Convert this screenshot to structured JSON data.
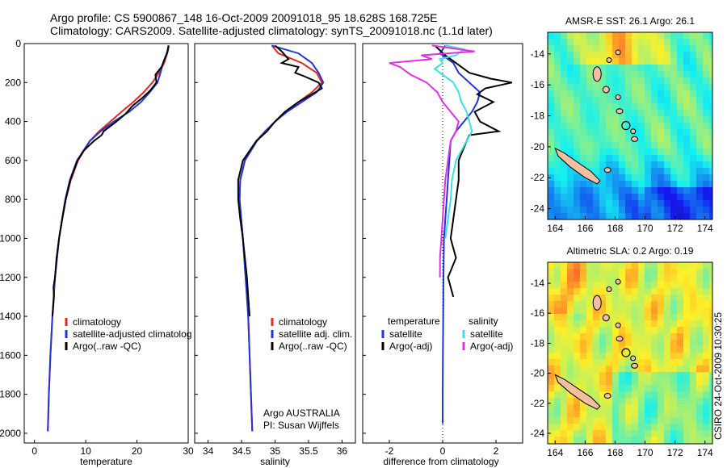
{
  "header": {
    "line1": "Argo profile: CS 5900867_148 16-Oct-2009 20091018_95 18.628S 168.725E",
    "line2": "Climatology: CARS2009. Satellite-adjusted climatology: synTS_20091018.nc (1.1d later)"
  },
  "side_text": "CSIRO 24-Oct-2009 10:30:25",
  "colors": {
    "climatology": "#e8251f",
    "satellite": "#1f35d6",
    "argo": "#000000",
    "sal_satellite": "#3fdfe0",
    "sal_argo": "#e030e0",
    "land": "#f2bfa0"
  },
  "chart_data": [
    {
      "type": "line",
      "xlabel": "temperature",
      "ylabel": "",
      "xlim": [
        -2,
        30
      ],
      "ylim": [
        2050,
        0
      ],
      "xticks": [
        "0",
        "10",
        "20",
        "30"
      ],
      "yticks": [
        "0",
        "200",
        "400",
        "600",
        "800",
        "1000",
        "1200",
        "1400",
        "1600",
        "1800",
        "2000"
      ],
      "legend": [
        "climatology",
        "satellite-adjusted climatolog",
        "Argo(..raw -QC)"
      ],
      "legend_position": "lower-right",
      "series": [
        {
          "name": "climatology",
          "y": [
            10,
            50,
            100,
            150,
            200,
            250,
            300,
            350,
            400,
            450,
            500,
            600,
            700,
            800,
            1000,
            1200,
            1400,
            1600,
            1800,
            1990
          ],
          "x": [
            26.1,
            25.9,
            25.3,
            24.3,
            23.0,
            21.3,
            19.3,
            17.0,
            14.8,
            12.6,
            10.8,
            8.5,
            7.1,
            6.1,
            4.8,
            4.0,
            3.5,
            3.1,
            2.8,
            2.6
          ]
        },
        {
          "name": "satellite-adjusted climatolog",
          "y": [
            10,
            50,
            100,
            150,
            200,
            250,
            300,
            350,
            400,
            450,
            500,
            600,
            700,
            800,
            1000,
            1200,
            1400,
            1600,
            1800,
            1990
          ],
          "x": [
            26.2,
            25.8,
            25.1,
            24.6,
            24.0,
            22.5,
            20.8,
            18.5,
            15.5,
            12.9,
            10.8,
            8.3,
            6.9,
            6.0,
            4.8,
            4.0,
            3.5,
            3.1,
            2.8,
            2.6
          ]
        },
        {
          "name": "Argo(..raw -QC)",
          "y": [
            10,
            40,
            80,
            120,
            160,
            200,
            240,
            280,
            320,
            360,
            400,
            450,
            470,
            500,
            550,
            600,
            700,
            800,
            900,
            1000,
            1100,
            1200,
            1250,
            1300,
            1400
          ],
          "x": [
            26.2,
            26.0,
            25.4,
            24.8,
            23.6,
            23.8,
            22.6,
            21.0,
            19.1,
            17.8,
            16.0,
            13.5,
            13.1,
            11.6,
            9.6,
            8.4,
            7.0,
            6.1,
            5.4,
            4.8,
            4.3,
            4.0,
            3.7,
            3.8,
            3.5
          ]
        }
      ]
    },
    {
      "type": "line",
      "xlabel": "salinity",
      "ylabel": "",
      "xlim": [
        33.8,
        36.2
      ],
      "ylim": [
        2050,
        0
      ],
      "xticks": [
        "34",
        "34.5",
        "35",
        "35.5",
        "36"
      ],
      "legend": [
        "climatology",
        "satellite adj. clim.",
        "Argo(..raw -QC)"
      ],
      "legend_position": "lower-right",
      "annotation": [
        "Argo AUSTRALIA",
        "PI: Susan Wijffels"
      ],
      "series": [
        {
          "name": "climatology",
          "y": [
            10,
            50,
            100,
            150,
            200,
            250,
            300,
            350,
            400,
            450,
            500,
            600,
            700,
            800,
            1000,
            1200,
            1400,
            1600,
            1800,
            1990
          ],
          "x": [
            34.95,
            35.05,
            35.4,
            35.62,
            35.7,
            35.55,
            35.35,
            35.15,
            35.0,
            34.85,
            34.72,
            34.55,
            34.48,
            34.47,
            34.52,
            34.56,
            34.6,
            34.62,
            34.64,
            34.66
          ]
        },
        {
          "name": "satellite adj. clim.",
          "y": [
            10,
            50,
            100,
            150,
            200,
            250,
            300,
            350,
            400,
            450,
            500,
            600,
            700,
            800,
            1000,
            1200,
            1400,
            1600,
            1800,
            1990
          ],
          "x": [
            34.95,
            35.35,
            35.55,
            35.65,
            35.72,
            35.62,
            35.4,
            35.18,
            35.0,
            34.86,
            34.73,
            34.55,
            34.48,
            34.47,
            34.52,
            34.56,
            34.6,
            34.62,
            34.64,
            34.66
          ]
        },
        {
          "name": "Argo(..raw -QC)",
          "y": [
            10,
            40,
            80,
            100,
            120,
            150,
            170,
            200,
            230,
            260,
            300,
            350,
            400,
            450,
            500,
            600,
            700,
            800,
            900,
            1000,
            1100,
            1200,
            1300,
            1400
          ],
          "x": [
            35.0,
            35.1,
            35.2,
            35.1,
            35.35,
            35.3,
            35.45,
            35.65,
            35.7,
            35.55,
            35.35,
            35.15,
            35.0,
            34.88,
            34.72,
            34.52,
            34.45,
            34.45,
            34.48,
            34.52,
            34.55,
            34.58,
            34.6,
            34.62
          ]
        }
      ]
    },
    {
      "type": "line",
      "xlabel": "difference from climatology",
      "ylabel": "",
      "xlim": [
        -3,
        3
      ],
      "ylim": [
        2050,
        0
      ],
      "xticks": [
        "-2",
        "0",
        "2"
      ],
      "legend": [
        "temperature",
        "satellite",
        "Argo(-adj)",
        "salinity",
        "satellite",
        "Argo(-adj)"
      ],
      "legend_position": "lower-center",
      "series": [
        {
          "name": "satellite",
          "y": [
            10,
            50,
            100,
            150,
            200,
            250,
            300,
            350,
            400,
            450,
            500,
            600,
            700,
            800,
            900,
            1000,
            1200,
            1400,
            1600,
            1800,
            1950
          ],
          "x": [
            0.1,
            -0.1,
            0.4,
            0.6,
            1.0,
            1.4,
            1.3,
            1.1,
            0.8,
            0.5,
            0.3,
            0.25,
            0.2,
            0.15,
            0.1,
            0.05,
            0.03,
            0.02,
            0.01,
            0.0,
            0.0
          ]
        },
        {
          "name": "Argo(-adj)",
          "y": [
            10,
            60,
            100,
            150,
            180,
            200,
            230,
            260,
            300,
            350,
            400,
            450,
            470,
            500,
            600,
            700,
            800,
            900,
            1000,
            1100,
            1200,
            1300
          ],
          "x": [
            -0.3,
            0.1,
            0.5,
            1.0,
            1.8,
            2.6,
            1.6,
            1.3,
            1.9,
            1.2,
            1.4,
            2.1,
            1.0,
            0.9,
            0.6,
            0.6,
            0.5,
            0.4,
            0.3,
            0.5,
            0.2,
            0.4
          ]
        },
        {
          "name": "satellite",
          "y": [
            10,
            30,
            60,
            80,
            100,
            130,
            160,
            200,
            250,
            300,
            350,
            400,
            450,
            500,
            550,
            600,
            700,
            800,
            900,
            1000
          ],
          "x": [
            0.1,
            0.8,
            0.5,
            -0.1,
            0.0,
            -0.3,
            0.0,
            0.4,
            0.6,
            0.7,
            0.9,
            1.0,
            1.1,
            0.9,
            0.7,
            0.5,
            0.35,
            0.3,
            0.2,
            0.1
          ]
        },
        {
          "name": "Argo(-adj)",
          "y": [
            10,
            40,
            60,
            80,
            100,
            120,
            160,
            200,
            250,
            300,
            350,
            400,
            450,
            500,
            600,
            700,
            800,
            900,
            1000,
            1100,
            1200
          ],
          "x": [
            -0.4,
            1.2,
            -0.8,
            -0.4,
            -2.0,
            -1.6,
            -1.2,
            -0.6,
            -0.2,
            0.0,
            0.3,
            0.6,
            0.5,
            0.3,
            0.2,
            0.1,
            0.05,
            0.0,
            -0.05,
            -0.1,
            -0.1
          ]
        }
      ]
    },
    {
      "type": "heatmap",
      "title": "AMSR-E SST: 26.1  Argo: 26.1",
      "xticks": [
        "164",
        "166",
        "168",
        "170",
        "172",
        "174"
      ],
      "yticks": [
        "-14",
        "-16",
        "-18",
        "-20",
        "-22",
        "-24"
      ],
      "xlim": [
        163.5,
        174.5
      ],
      "ylim": [
        -24.7,
        -12.6
      ],
      "marker": {
        "lon": 168.725,
        "lat": -18.628
      }
    },
    {
      "type": "heatmap",
      "title": "Altimetric SLA: 0.2  Argo: 0.19",
      "xticks": [
        "164",
        "166",
        "168",
        "170",
        "172",
        "174"
      ],
      "yticks": [
        "-14",
        "-16",
        "-18",
        "-20",
        "-22",
        "-24"
      ],
      "xlim": [
        163.5,
        174.5
      ],
      "ylim": [
        -24.7,
        -12.6
      ],
      "marker": {
        "lon": 168.725,
        "lat": -18.628
      }
    }
  ]
}
